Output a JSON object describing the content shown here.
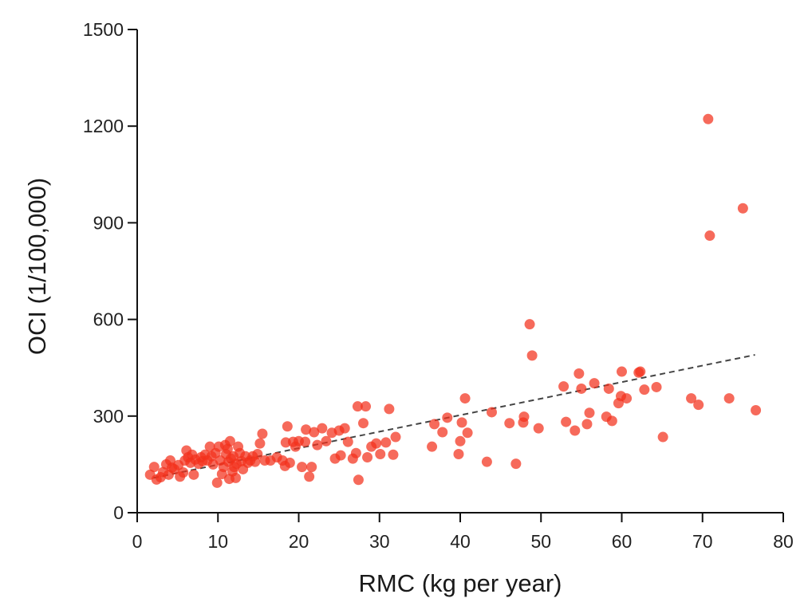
{
  "chart_data": {
    "type": "scatter",
    "title": "",
    "xlabel": "RMC (kg per year)",
    "ylabel": "OCI (1/100,000)",
    "xlim": [
      0,
      80
    ],
    "ylim": [
      0,
      1500
    ],
    "x_ticks": [
      0,
      10,
      20,
      30,
      40,
      50,
      60,
      70,
      80
    ],
    "y_ticks": [
      0,
      300,
      600,
      900,
      1200,
      1500
    ],
    "grid": false,
    "legend": "none",
    "point_color": "#f2311c",
    "trendline": {
      "style": "dashed",
      "color": "#444444",
      "x": [
        2,
        76.5
      ],
      "y": [
        108,
        490
      ]
    },
    "series": [
      {
        "points": [
          [
            1.6,
            118
          ],
          [
            2.1,
            142
          ],
          [
            2.4,
            103
          ],
          [
            2.9,
            110
          ],
          [
            3.2,
            126
          ],
          [
            3.6,
            150
          ],
          [
            3.9,
            118
          ],
          [
            4.1,
            162
          ],
          [
            4.3,
            140
          ],
          [
            4.6,
            135
          ],
          [
            5.1,
            148
          ],
          [
            5.3,
            112
          ],
          [
            5.7,
            125
          ],
          [
            5.9,
            162
          ],
          [
            6.1,
            193
          ],
          [
            6.3,
            172
          ],
          [
            6.6,
            155
          ],
          [
            6.8,
            180
          ],
          [
            7.0,
            118
          ],
          [
            7.2,
            165
          ],
          [
            7.6,
            152
          ],
          [
            7.9,
            172
          ],
          [
            8.1,
            160
          ],
          [
            8.4,
            180
          ],
          [
            8.7,
            162
          ],
          [
            9.0,
            205
          ],
          [
            9.2,
            175
          ],
          [
            9.4,
            150
          ],
          [
            9.7,
            185
          ],
          [
            9.9,
            93
          ],
          [
            10.1,
            205
          ],
          [
            10.3,
            162
          ],
          [
            10.5,
            120
          ],
          [
            10.7,
            142
          ],
          [
            10.9,
            210
          ],
          [
            11.0,
            182
          ],
          [
            11.2,
            198
          ],
          [
            11.3,
            158
          ],
          [
            11.4,
            105
          ],
          [
            11.5,
            222
          ],
          [
            11.6,
            168
          ],
          [
            11.8,
            128
          ],
          [
            11.9,
            175
          ],
          [
            12.0,
            142
          ],
          [
            12.2,
            108
          ],
          [
            12.3,
            152
          ],
          [
            12.5,
            205
          ],
          [
            12.7,
            185
          ],
          [
            12.9,
            160
          ],
          [
            13.1,
            135
          ],
          [
            13.4,
            175
          ],
          [
            13.7,
            155
          ],
          [
            14.0,
            162
          ],
          [
            14.3,
            175
          ],
          [
            14.6,
            158
          ],
          [
            14.9,
            182
          ],
          [
            15.2,
            215
          ],
          [
            15.5,
            245
          ],
          [
            15.8,
            162
          ],
          [
            16.5,
            162
          ],
          [
            17.3,
            172
          ],
          [
            18.0,
            162
          ],
          [
            18.3,
            145
          ],
          [
            18.4,
            218
          ],
          [
            18.6,
            268
          ],
          [
            18.9,
            155
          ],
          [
            19.3,
            220
          ],
          [
            19.6,
            205
          ],
          [
            20.0,
            222
          ],
          [
            20.4,
            142
          ],
          [
            20.8,
            220
          ],
          [
            20.9,
            258
          ],
          [
            21.3,
            112
          ],
          [
            21.6,
            142
          ],
          [
            21.9,
            250
          ],
          [
            22.3,
            210
          ],
          [
            22.9,
            262
          ],
          [
            23.4,
            222
          ],
          [
            24.1,
            248
          ],
          [
            24.5,
            168
          ],
          [
            25.0,
            255
          ],
          [
            25.2,
            178
          ],
          [
            25.7,
            262
          ],
          [
            26.1,
            220
          ],
          [
            26.7,
            168
          ],
          [
            27.1,
            185
          ],
          [
            27.3,
            330
          ],
          [
            27.4,
            102
          ],
          [
            28.0,
            278
          ],
          [
            28.3,
            330
          ],
          [
            28.5,
            172
          ],
          [
            29.0,
            205
          ],
          [
            29.6,
            215
          ],
          [
            30.1,
            182
          ],
          [
            30.8,
            218
          ],
          [
            31.2,
            322
          ],
          [
            31.7,
            180
          ],
          [
            32.0,
            235
          ],
          [
            36.5,
            205
          ],
          [
            36.8,
            275
          ],
          [
            37.8,
            250
          ],
          [
            38.4,
            295
          ],
          [
            39.8,
            182
          ],
          [
            40.0,
            222
          ],
          [
            40.2,
            280
          ],
          [
            40.6,
            355
          ],
          [
            40.9,
            248
          ],
          [
            43.3,
            158
          ],
          [
            43.9,
            312
          ],
          [
            46.1,
            278
          ],
          [
            46.9,
            152
          ],
          [
            47.8,
            280
          ],
          [
            47.9,
            298
          ],
          [
            48.6,
            585
          ],
          [
            48.9,
            488
          ],
          [
            49.7,
            262
          ],
          [
            52.8,
            392
          ],
          [
            53.1,
            282
          ],
          [
            54.2,
            255
          ],
          [
            54.7,
            432
          ],
          [
            55.0,
            385
          ],
          [
            55.7,
            275
          ],
          [
            56.0,
            310
          ],
          [
            56.6,
            402
          ],
          [
            58.1,
            298
          ],
          [
            58.4,
            385
          ],
          [
            58.8,
            285
          ],
          [
            59.6,
            340
          ],
          [
            59.9,
            362
          ],
          [
            60.0,
            438
          ],
          [
            60.6,
            355
          ],
          [
            62.1,
            435
          ],
          [
            62.3,
            438
          ],
          [
            62.8,
            382
          ],
          [
            64.3,
            390
          ],
          [
            65.1,
            235
          ],
          [
            68.6,
            355
          ],
          [
            69.5,
            335
          ],
          [
            70.7,
            1222
          ],
          [
            70.9,
            860
          ],
          [
            73.3,
            355
          ],
          [
            75.0,
            945
          ],
          [
            76.6,
            318
          ]
        ]
      }
    ]
  }
}
